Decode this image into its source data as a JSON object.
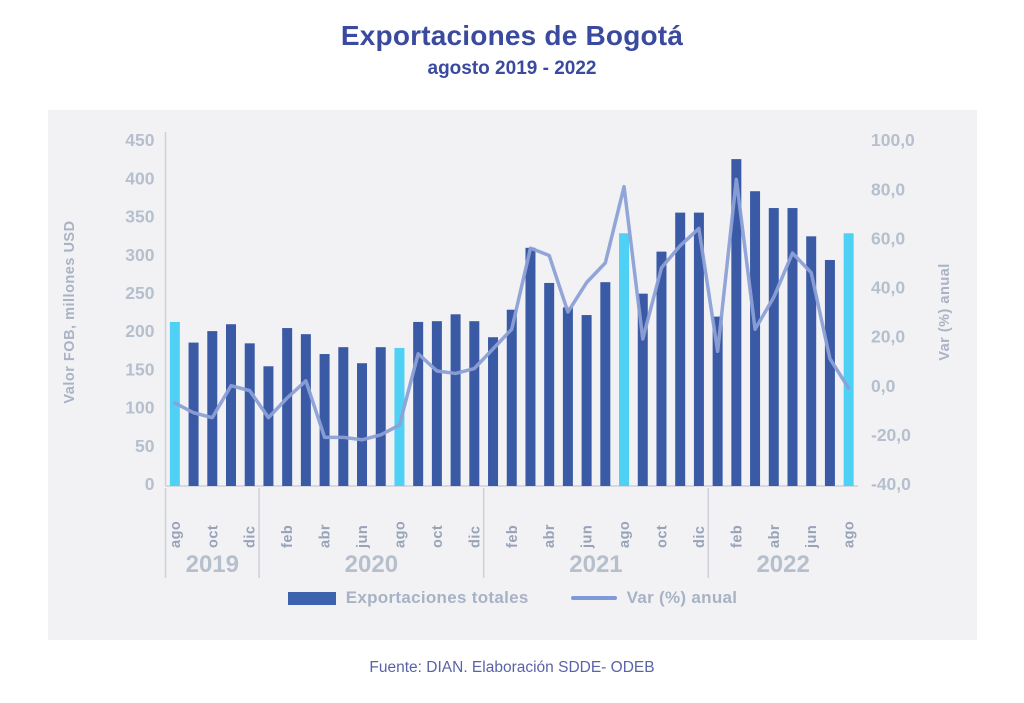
{
  "header": {
    "title": "Exportaciones de Bogotá",
    "subtitle": "agosto 2019 - 2022"
  },
  "legend": {
    "bars_label": "Exportaciones totales",
    "line_label": "Var (%) anual"
  },
  "footer": {
    "source": "Fuente: DIAN. Elaboración SDDE- ODEB"
  },
  "colors": {
    "title_text": "#3A4A9E",
    "bar": "#3A5AA6",
    "bar_highlight": "#4FD1F5",
    "line": "#8CA0D6",
    "legend_swatch": "#3E63AE",
    "legend_line": "#7E9BD8",
    "axis_line": "#CBD0D9",
    "tick_text": "#B5BFCD",
    "month_text": "#98A3B8",
    "year_text": "#B6BFCC",
    "axis_title_text": "#A9B3C3",
    "panel_bg": "#F2F2F5",
    "page_bg": "#FFFFFF",
    "footer_text": "#5A63A8"
  },
  "chart_data": {
    "type": "combo bar+line",
    "title": "Exportaciones de Bogotá",
    "subtitle": "agosto 2019 - 2022",
    "categories": [
      "ago 2019",
      "sep 2019",
      "oct 2019",
      "nov 2019",
      "dic 2019",
      "ene 2020",
      "feb 2020",
      "mar 2020",
      "abr 2020",
      "may 2020",
      "jun 2020",
      "jul 2020",
      "ago 2020",
      "sep 2020",
      "oct 2020",
      "nov 2020",
      "dic 2020",
      "ene 2021",
      "feb 2021",
      "mar 2021",
      "abr 2021",
      "may 2021",
      "jun 2021",
      "jul 2021",
      "ago 2021",
      "sep 2021",
      "oct 2021",
      "nov 2021",
      "dic 2021",
      "ene 2022",
      "feb 2022",
      "mar 2022",
      "abr 2022",
      "may 2022",
      "jun 2022",
      "jul 2022",
      "ago 2022"
    ],
    "label_every": 2,
    "series": [
      {
        "name": "Exportaciones totales",
        "type": "bar",
        "axis": "left",
        "values": [
          212,
          185,
          200,
          209,
          184,
          154,
          204,
          196,
          170,
          179,
          158,
          179,
          178,
          212,
          213,
          222,
          213,
          192,
          228,
          309,
          263,
          231,
          221,
          264,
          328,
          249,
          304,
          355,
          355,
          219,
          425,
          383,
          361,
          361,
          324,
          293,
          328
        ],
        "highlight_indices": [
          0,
          12,
          24,
          36
        ],
        "highlight_note": "august bars shown in cyan"
      },
      {
        "name": "Var (%) anual",
        "type": "line",
        "axis": "right",
        "values": [
          -7,
          -11,
          -13,
          0,
          -2,
          -13,
          -5,
          2,
          -21,
          -21,
          -22,
          -20,
          -16,
          13,
          6,
          5,
          7,
          15,
          23,
          56,
          53,
          30,
          42,
          50,
          81,
          19,
          48,
          57,
          64,
          14,
          84,
          23,
          36,
          54,
          46,
          11,
          -1
        ]
      }
    ],
    "left_axis": {
      "title": "Valor FOB, millones USD",
      "min": 0,
      "max": 450,
      "ticks": [
        450,
        400,
        350,
        300,
        250,
        200,
        150,
        100,
        50,
        0
      ]
    },
    "right_axis": {
      "title": "Var (%) anual",
      "min": -40,
      "max": 100,
      "ticks": [
        100,
        80,
        60,
        40,
        20,
        0,
        -20,
        -40
      ],
      "tick_format": "comma-decimal-1dp"
    },
    "year_groups": [
      {
        "label": "2019",
        "from": 0,
        "to": 4
      },
      {
        "label": "2020",
        "from": 5,
        "to": 16
      },
      {
        "label": "2021",
        "from": 17,
        "to": 28
      },
      {
        "label": "2022",
        "from": 29,
        "to": 36
      }
    ],
    "grid": false,
    "legend_position": "bottom"
  }
}
